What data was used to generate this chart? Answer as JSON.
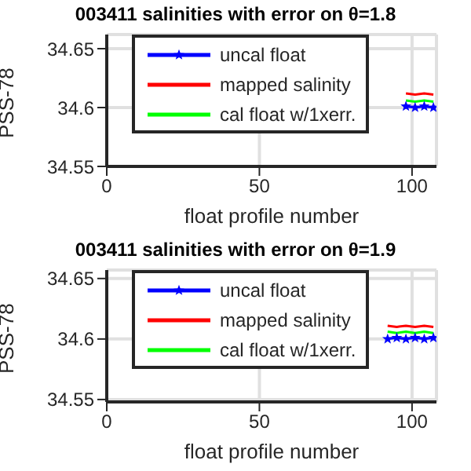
{
  "chart_data": [
    {
      "type": "line",
      "title": "003411 salinities with error on θ=1.8",
      "xlabel": "float profile number",
      "ylabel": "PSS-78",
      "xlim": [
        0,
        108
      ],
      "xticks": [
        0,
        50,
        100
      ],
      "ylim": [
        34.55,
        34.662
      ],
      "yticks": [
        34.55,
        34.6,
        34.65
      ],
      "grid": true,
      "legend": "top left",
      "series": [
        {
          "name": "uncal float",
          "color": "#0000ff",
          "marker": "star",
          "x": [
            98,
            101,
            104,
            107
          ],
          "values": [
            34.601,
            34.6,
            34.601,
            34.6
          ]
        },
        {
          "name": "mapped salinity",
          "color": "#ff0000",
          "marker": "none",
          "x": [
            98,
            101,
            104,
            107
          ],
          "values": [
            34.612,
            34.611,
            34.612,
            34.611
          ]
        },
        {
          "name": "cal float w/1xerr.",
          "color": "#00ff00",
          "marker": "none",
          "x": [
            98,
            101,
            104,
            107
          ],
          "values": [
            34.606,
            34.605,
            34.606,
            34.605
          ]
        }
      ]
    },
    {
      "type": "line",
      "title": "003411 salinities with error on θ=1.9",
      "xlabel": "float profile number",
      "ylabel": "PSS-78",
      "xlim": [
        0,
        108
      ],
      "xticks": [
        0,
        50,
        100
      ],
      "ylim": [
        34.548,
        34.657
      ],
      "yticks": [
        34.55,
        34.6,
        34.65
      ],
      "grid": true,
      "legend": "top left",
      "series": [
        {
          "name": "uncal float",
          "color": "#0000ff",
          "marker": "star",
          "x": [
            92,
            95,
            98,
            101,
            104,
            107
          ],
          "values": [
            34.6,
            34.601,
            34.6,
            34.601,
            34.6,
            34.601
          ]
        },
        {
          "name": "mapped salinity",
          "color": "#ff0000",
          "marker": "none",
          "x": [
            92,
            95,
            98,
            101,
            104,
            107
          ],
          "values": [
            34.611,
            34.61,
            34.611,
            34.61,
            34.611,
            34.61
          ]
        },
        {
          "name": "cal float w/1xerr.",
          "color": "#00ff00",
          "marker": "none",
          "x": [
            92,
            95,
            98,
            101,
            104,
            107
          ],
          "values": [
            34.606,
            34.605,
            34.606,
            34.605,
            34.606,
            34.605
          ]
        }
      ]
    }
  ]
}
